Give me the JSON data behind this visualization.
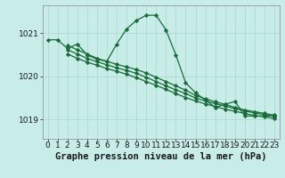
{
  "bg_color": "#c8ece8",
  "grid_color": "#a8d8cc",
  "line_color": "#1a6b3a",
  "marker_color": "#1a6b3a",
  "title": "Graphe pression niveau de la mer (hPa)",
  "xlim": [
    -0.5,
    23.5
  ],
  "ylim": [
    1018.55,
    1021.65
  ],
  "yticks": [
    1019,
    1020,
    1021
  ],
  "xticks": [
    0,
    1,
    2,
    3,
    4,
    5,
    6,
    7,
    8,
    9,
    10,
    11,
    12,
    13,
    14,
    15,
    16,
    17,
    18,
    19,
    20,
    21,
    22,
    23
  ],
  "lines": [
    {
      "x": [
        0,
        1,
        2,
        3,
        4,
        5,
        6,
        7,
        8,
        9,
        10,
        11,
        12,
        13,
        14,
        15,
        16,
        17,
        18,
        19,
        20,
        21,
        22,
        23
      ],
      "y": [
        1020.85,
        1020.85,
        1020.65,
        1020.75,
        1020.5,
        1020.4,
        1020.35,
        1020.75,
        1021.1,
        1021.3,
        1021.42,
        1021.42,
        1021.08,
        1020.5,
        1019.85,
        1019.62,
        1019.45,
        1019.28,
        1019.35,
        1019.42,
        1019.08,
        1019.08,
        1019.08,
        1019.08
      ]
    },
    {
      "x": [
        2,
        3,
        4,
        5,
        6,
        7,
        8,
        9,
        10,
        11,
        12,
        13,
        14,
        15,
        16,
        17,
        18,
        19,
        20,
        21,
        22,
        23
      ],
      "y": [
        1020.72,
        1020.62,
        1020.52,
        1020.42,
        1020.35,
        1020.28,
        1020.22,
        1020.16,
        1020.08,
        1019.98,
        1019.88,
        1019.78,
        1019.68,
        1019.56,
        1019.48,
        1019.41,
        1019.35,
        1019.28,
        1019.22,
        1019.18,
        1019.14,
        1019.1
      ]
    },
    {
      "x": [
        2,
        3,
        4,
        5,
        6,
        7,
        8,
        9,
        10,
        11,
        12,
        13,
        14,
        15,
        16,
        17,
        18,
        19,
        20,
        21,
        22,
        23
      ],
      "y": [
        1020.62,
        1020.52,
        1020.42,
        1020.34,
        1020.27,
        1020.2,
        1020.14,
        1020.07,
        1019.98,
        1019.88,
        1019.78,
        1019.69,
        1019.6,
        1019.5,
        1019.43,
        1019.37,
        1019.31,
        1019.25,
        1019.2,
        1019.15,
        1019.11,
        1019.07
      ]
    },
    {
      "x": [
        2,
        3,
        4,
        5,
        6,
        7,
        8,
        9,
        10,
        11,
        12,
        13,
        14,
        15,
        16,
        17,
        18,
        19,
        20,
        21,
        22,
        23
      ],
      "y": [
        1020.52,
        1020.42,
        1020.33,
        1020.26,
        1020.18,
        1020.12,
        1020.05,
        1019.97,
        1019.88,
        1019.79,
        1019.7,
        1019.6,
        1019.51,
        1019.43,
        1019.36,
        1019.3,
        1019.24,
        1019.19,
        1019.14,
        1019.09,
        1019.06,
        1019.02
      ]
    }
  ],
  "tick_fontsize": 6.5,
  "label_fontsize": 7.5
}
